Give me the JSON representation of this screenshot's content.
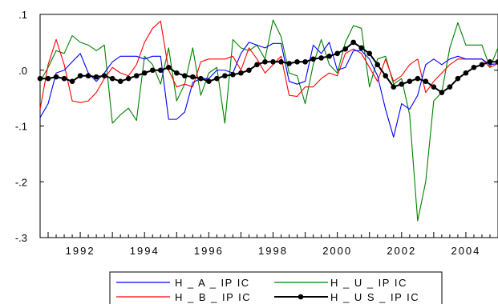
{
  "chart_data": {
    "type": "line",
    "title": "",
    "xlabel": "",
    "ylabel": "",
    "x": [
      1990.75,
      1991.0,
      1991.25,
      1991.5,
      1991.75,
      1992.0,
      1992.25,
      1992.5,
      1992.75,
      1993.0,
      1993.25,
      1993.5,
      1993.75,
      1994.0,
      1994.25,
      1994.5,
      1994.75,
      1995.0,
      1995.25,
      1995.5,
      1995.75,
      1996.0,
      1996.25,
      1996.5,
      1996.75,
      1997.0,
      1997.25,
      1997.5,
      1997.75,
      1998.0,
      1998.25,
      1998.5,
      1998.75,
      1999.0,
      1999.25,
      1999.5,
      1999.75,
      2000.0,
      2000.25,
      2000.5,
      2000.75,
      2001.0,
      2001.25,
      2001.5,
      2001.75,
      2002.0,
      2002.25,
      2002.5,
      2002.75,
      2003.0,
      2003.25,
      2003.5,
      2003.75,
      2004.0,
      2004.25,
      2004.5,
      2004.75,
      2005.0
    ],
    "xlim": [
      1990.75,
      2005.0
    ],
    "ylim": [
      -0.3,
      0.1
    ],
    "x_ticks": [
      "1992",
      "1994",
      "1996",
      "1998",
      "2000",
      "2002",
      "2004"
    ],
    "y_ticks": [
      ".1",
      ".0",
      "-.1",
      "-.2",
      "-.3"
    ],
    "grid": false,
    "legend_position": "bottom",
    "series": [
      {
        "name": "H _ A _ IP IC",
        "color": "#0000ff",
        "marker": "none",
        "values": [
          -0.085,
          -0.06,
          -0.005,
          0.0,
          0.015,
          0.03,
          -0.005,
          -0.02,
          -0.005,
          0.015,
          0.025,
          0.025,
          0.025,
          0.02,
          0.025,
          0.025,
          -0.088,
          -0.088,
          -0.075,
          -0.022,
          -0.015,
          -0.015,
          0.0,
          0.0,
          -0.005,
          0.03,
          0.05,
          0.045,
          0.04,
          0.048,
          0.048,
          -0.02,
          -0.025,
          -0.02,
          0.045,
          0.03,
          0.05,
          0.0,
          0.005,
          0.035,
          0.035,
          0.02,
          -0.01,
          -0.07,
          -0.12,
          -0.06,
          -0.07,
          -0.045,
          0.01,
          0.02,
          0.01,
          0.02,
          0.025,
          0.02,
          0.02,
          0.02,
          0.01,
          0.012
        ]
      },
      {
        "name": "H _ B _ IP IC",
        "color": "#ff0000",
        "marker": "none",
        "values": [
          -0.07,
          0.01,
          0.055,
          0.01,
          -0.055,
          -0.058,
          -0.055,
          -0.04,
          -0.015,
          0.005,
          -0.005,
          -0.01,
          0.01,
          0.05,
          0.075,
          0.088,
          0.0,
          -0.03,
          -0.025,
          -0.03,
          0.015,
          0.02,
          0.02,
          0.02,
          0.025,
          0.0,
          0.04,
          0.02,
          -0.005,
          0.01,
          0.025,
          -0.045,
          -0.047,
          -0.03,
          -0.03,
          -0.015,
          -0.005,
          -0.01,
          0.03,
          0.038,
          0.03,
          0.005,
          -0.02,
          0.02,
          -0.02,
          -0.01,
          0.01,
          0.02,
          -0.04,
          -0.02,
          -0.005,
          0.01,
          0.02,
          0.02,
          0.02,
          0.02,
          0.005,
          0.012
        ]
      },
      {
        "name": "H _ U _ IP IC",
        "color": "#008000",
        "marker": "none",
        "values": [
          -0.02,
          0.005,
          0.035,
          0.03,
          0.062,
          0.05,
          0.045,
          0.035,
          0.045,
          -0.095,
          -0.08,
          -0.068,
          -0.09,
          0.025,
          0.01,
          -0.025,
          0.04,
          -0.055,
          -0.025,
          0.04,
          -0.045,
          -0.005,
          0.005,
          -0.095,
          0.055,
          0.04,
          0.035,
          0.045,
          0.02,
          0.09,
          0.06,
          -0.005,
          -0.01,
          -0.06,
          0.01,
          0.055,
          0.01,
          -0.005,
          0.05,
          0.08,
          0.075,
          -0.03,
          0.02,
          0.025,
          -0.025,
          -0.015,
          -0.08,
          -0.27,
          -0.2,
          -0.055,
          -0.04,
          0.04,
          0.085,
          0.045,
          0.045,
          0.045,
          0.005,
          0.04
        ]
      },
      {
        "name": "H _ U S _ IP IC",
        "color": "#000000",
        "marker": "circle",
        "values": [
          -0.015,
          -0.015,
          -0.012,
          -0.015,
          -0.02,
          -0.01,
          -0.01,
          -0.012,
          -0.01,
          -0.015,
          -0.02,
          -0.015,
          -0.01,
          -0.005,
          0.0,
          0.0,
          0.005,
          -0.005,
          -0.01,
          -0.012,
          -0.015,
          -0.02,
          -0.015,
          -0.01,
          -0.008,
          -0.005,
          0.0,
          0.01,
          0.015,
          0.015,
          0.015,
          0.012,
          0.015,
          0.015,
          0.02,
          0.022,
          0.025,
          0.03,
          0.038,
          0.05,
          0.04,
          0.03,
          0.01,
          -0.01,
          -0.03,
          -0.025,
          -0.02,
          -0.015,
          -0.02,
          -0.03,
          -0.04,
          -0.03,
          -0.015,
          -0.005,
          0.005,
          0.01,
          0.015,
          0.015
        ]
      }
    ]
  }
}
